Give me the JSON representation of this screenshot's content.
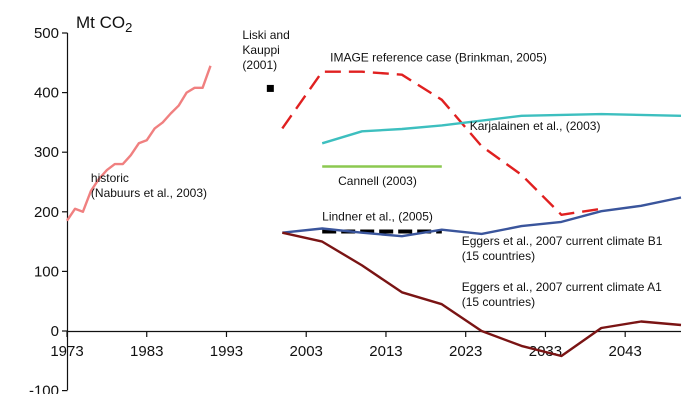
{
  "chart_data": {
    "type": "line",
    "title": "",
    "unit_label": {
      "prefix": "Mt CO",
      "subscript": "2"
    },
    "xlabel": "",
    "ylabel": "",
    "xlim": [
      1973,
      2050
    ],
    "ylim": [
      -100,
      500
    ],
    "x_ticks": [
      1973,
      1983,
      1993,
      2003,
      2013,
      2023,
      2033,
      2043
    ],
    "y_ticks": [
      -100,
      0,
      100,
      200,
      300,
      400,
      500
    ],
    "grid": false,
    "legend": "none (series labelled directly)",
    "series": [
      {
        "key": "historic",
        "color": "#f08080",
        "dash": "solid",
        "x": [
          1973,
          1974,
          1975,
          1976,
          1977,
          1978,
          1979,
          1980,
          1981,
          1982,
          1983,
          1984,
          1985,
          1986,
          1987,
          1988,
          1989,
          1990,
          1991
        ],
        "y": [
          185,
          205,
          200,
          235,
          255,
          270,
          280,
          280,
          295,
          315,
          320,
          340,
          350,
          365,
          378,
          400,
          408,
          408,
          445
        ]
      },
      {
        "key": "image",
        "color": "#e02020",
        "dash": "dashed",
        "x": [
          2000,
          2005,
          2010,
          2015,
          2020,
          2025,
          2030,
          2035,
          2040
        ],
        "y": [
          340,
          435,
          435,
          430,
          388,
          310,
          262,
          195,
          205
        ]
      },
      {
        "key": "karjalainen",
        "color": "#3dbfbf",
        "dash": "solid",
        "x": [
          2005,
          2010,
          2015,
          2020,
          2030,
          2040,
          2050
        ],
        "y": [
          315,
          335,
          339,
          345,
          361,
          364,
          361
        ]
      },
      {
        "key": "cannell",
        "color": "#8cc850",
        "dash": "solid",
        "x": [
          2005,
          2020
        ],
        "y": [
          276,
          276
        ]
      },
      {
        "key": "lindner",
        "color": "#000000",
        "dash": "dashed",
        "x": [
          2005,
          2020
        ],
        "y": [
          167,
          167
        ]
      },
      {
        "key": "eggers_b1",
        "color": "#3a559c",
        "dash": "solid",
        "x": [
          2000,
          2005,
          2010,
          2015,
          2020,
          2025,
          2030,
          2035,
          2040,
          2045,
          2050
        ],
        "y": [
          165,
          172,
          165,
          159,
          170,
          163,
          176,
          183,
          201,
          210,
          224
        ]
      },
      {
        "key": "eggers_a1",
        "color": "#7a1414",
        "dash": "solid",
        "x": [
          2000,
          2005,
          2010,
          2015,
          2020,
          2025,
          2030,
          2035,
          2040,
          2045,
          2050
        ],
        "y": [
          165,
          150,
          110,
          65,
          45,
          0,
          -25,
          -42,
          5,
          16,
          10
        ]
      }
    ],
    "point_markers": [
      {
        "key": "liski",
        "x": 1998.5,
        "y": 407,
        "color": "#000000"
      }
    ],
    "annotations": [
      {
        "key": "historic",
        "lines": [
          "historic",
          "(Nabuurs et al., 2003)"
        ],
        "x": 1976,
        "y": 250
      },
      {
        "key": "liski",
        "lines": [
          "Liski and",
          "Kauppi",
          "(2001)"
        ],
        "x": 1995,
        "y": 490
      },
      {
        "key": "image",
        "lines": [
          "IMAGE reference case (Brinkman, 2005)"
        ],
        "x": 2006,
        "y": 452
      },
      {
        "key": "karjalainen",
        "lines": [
          "Karjalainen et al., (2003)"
        ],
        "x": 2023.5,
        "y": 337
      },
      {
        "key": "cannell",
        "lines": [
          "Cannell (2003)"
        ],
        "x": 2007,
        "y": 245
      },
      {
        "key": "lindner",
        "lines": [
          "Lindner et al., (2005)"
        ],
        "x": 2005,
        "y": 185
      },
      {
        "key": "eggers_b1",
        "lines": [
          "Eggers et al., 2007 current climate B1",
          "(15 countries)"
        ],
        "x": 2022.5,
        "y": 144
      },
      {
        "key": "eggers_a1",
        "lines": [
          "Eggers et al., 2007 current climate A1",
          "(15 countries)"
        ],
        "x": 2022.5,
        "y": 67
      }
    ]
  }
}
